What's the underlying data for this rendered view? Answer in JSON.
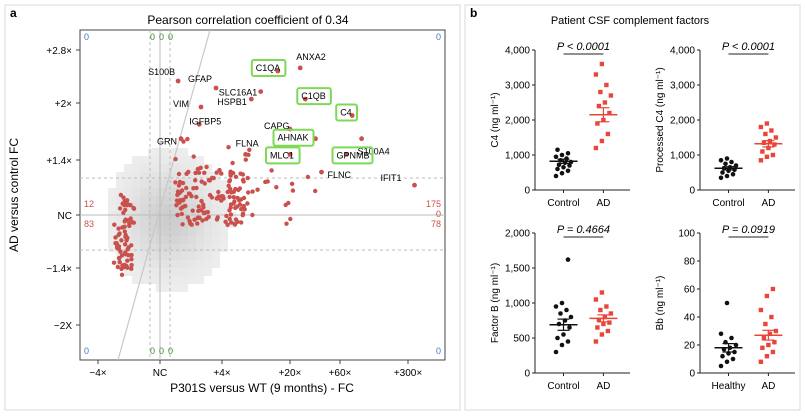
{
  "panel_a": {
    "label": "a",
    "title": "Pearson correlation coefficient of 0.34",
    "xlabel": "P301S versus WT (9 months) - FC",
    "ylabel": "AD versus control FC",
    "x_ticks": [
      "−4×",
      "NC",
      "+4×",
      "+20×",
      "+60×",
      "+300×"
    ],
    "y_ticks": [
      "+2.8×",
      "+2×",
      "+1.4×",
      "NC",
      "−1.4×",
      "−2X"
    ],
    "corner_counts": {
      "top_left": "0",
      "top_right": "0",
      "bottom_left": "0",
      "bottom_right": "0",
      "top_green": [
        "0",
        "0",
        "0"
      ],
      "bottom_green": [
        "0",
        "0",
        "0"
      ],
      "left_upper": "12",
      "left_lower": "83",
      "right_upper": "175",
      "right_lower": "78",
      "right_mid": "0"
    },
    "colors": {
      "points": "#c9504c",
      "highlight_box": "#7ed957",
      "count_blue": "#3a78c8",
      "count_green": "#3a8a2a",
      "count_red": "#c9504c"
    }
  },
  "panel_b": {
    "label": "b",
    "title": "Patient CSF complement factors",
    "colors": {
      "control": "#111111",
      "ad": "#e8463a"
    }
  },
  "chart_data": [
    {
      "type": "scatter",
      "title": "Pearson correlation coefficient of 0.34",
      "xlabel": "P301S versus WT (9 months) - FC",
      "ylabel": "AD versus control FC",
      "x_scale": "log fold change",
      "labeled_points": [
        {
          "label": "S100B",
          "x": 1.5,
          "y": 2.3
        },
        {
          "label": "GFAP",
          "x": 3.5,
          "y": 2.2
        },
        {
          "label": "VIM",
          "x": 2.5,
          "y": 1.95
        },
        {
          "label": "IGFBP5",
          "x": 2.4,
          "y": 1.75
        },
        {
          "label": "GRN",
          "x": 1.6,
          "y": 1.6
        },
        {
          "label": "HSPB1",
          "x": 8,
          "y": 2.05
        },
        {
          "label": "SLC16A1",
          "x": 10,
          "y": 2.15
        },
        {
          "label": "ANXA2",
          "x": 25,
          "y": 2.5
        },
        {
          "label": "C1QA",
          "x": 15,
          "y": 2.45
        },
        {
          "label": "C1QB",
          "x": 28,
          "y": 2.05
        },
        {
          "label": "C4",
          "x": 80,
          "y": 1.85
        },
        {
          "label": "CAPG",
          "x": 20,
          "y": 1.7
        },
        {
          "label": "AHNAK",
          "x": 35,
          "y": 1.6
        },
        {
          "label": "S100A4",
          "x": 100,
          "y": 1.6
        },
        {
          "label": "FLNA",
          "x": 7,
          "y": 1.45
        },
        {
          "label": "MLC1",
          "x": 20,
          "y": 1.45
        },
        {
          "label": "GPNMB",
          "x": 70,
          "y": 1.45
        },
        {
          "label": "FLNC",
          "x": 40,
          "y": 1.3
        },
        {
          "label": "IFIT1",
          "x": 350,
          "y": 1.2
        }
      ],
      "highlighted": [
        "C1QA",
        "C1QB",
        "C4",
        "AHNAK",
        "MLC1",
        "GPNMB"
      ]
    },
    {
      "type": "scatter",
      "subtype": "strip",
      "ylabel": "C4 (ng ml⁻¹)",
      "categories": [
        "Control",
        "AD"
      ],
      "ylim": [
        0,
        4000
      ],
      "yticks": [
        "0",
        "1,000",
        "2,000",
        "3,000",
        "4,000"
      ],
      "pvalue": "P < 0.0001",
      "series": [
        {
          "values": [
            400,
            480,
            550,
            600,
            650,
            700,
            720,
            780,
            800,
            850,
            900,
            950,
            1000,
            1050,
            1150
          ]
        },
        {
          "values": [
            1200,
            1400,
            1600,
            1900,
            2000,
            2200,
            2400,
            2500,
            2700,
            2800,
            3000,
            3300,
            3600
          ]
        }
      ],
      "mean": [
        820,
        2150
      ],
      "sem": [
        60,
        200
      ]
    },
    {
      "type": "scatter",
      "subtype": "strip",
      "ylabel": "Processed C4 (ng ml⁻¹)",
      "categories": [
        "Control",
        "AD"
      ],
      "ylim": [
        0,
        4000
      ],
      "yticks": [
        "0",
        "1,000",
        "2,000",
        "3,000",
        "4,000"
      ],
      "pvalue": "P < 0.0001",
      "series": [
        {
          "values": [
            350,
            400,
            450,
            500,
            550,
            580,
            620,
            650,
            700,
            750,
            800,
            850,
            900
          ]
        },
        {
          "values": [
            850,
            950,
            1000,
            1100,
            1200,
            1300,
            1350,
            1400,
            1500,
            1600,
            1700,
            1800,
            1900
          ]
        }
      ],
      "mean": [
        620,
        1320
      ],
      "sem": [
        45,
        90
      ]
    },
    {
      "type": "scatter",
      "subtype": "strip",
      "ylabel": "Factor B (ng ml⁻¹)",
      "categories": [
        "Control",
        "AD"
      ],
      "ylim": [
        0,
        2000
      ],
      "yticks": [
        "0",
        "500",
        "1,000",
        "1,500",
        "2,000"
      ],
      "pvalue": "P = 0.4664",
      "series": [
        {
          "values": [
            300,
            400,
            450,
            500,
            550,
            650,
            700,
            750,
            800,
            850,
            900,
            950,
            1000,
            1620
          ]
        },
        {
          "values": [
            450,
            550,
            600,
            650,
            700,
            720,
            760,
            800,
            850,
            900,
            950,
            1050,
            1150
          ]
        }
      ],
      "mean": [
        690,
        780
      ],
      "sem": [
        80,
        50
      ]
    },
    {
      "type": "scatter",
      "subtype": "strip",
      "ylabel": "Bb (ng ml⁻¹)",
      "categories": [
        "Healthy",
        "AD"
      ],
      "ylim": [
        0,
        100
      ],
      "yticks": [
        "0",
        "20",
        "40",
        "60",
        "80",
        "100"
      ],
      "pvalue": "P = 0.0919",
      "series": [
        {
          "values": [
            5,
            8,
            10,
            12,
            14,
            15,
            17,
            18,
            20,
            22,
            25,
            28,
            50
          ]
        },
        {
          "values": [
            8,
            12,
            15,
            18,
            20,
            22,
            25,
            28,
            30,
            35,
            40,
            45,
            55,
            60
          ]
        }
      ],
      "mean": [
        18,
        27
      ],
      "sem": [
        3,
        3.5
      ]
    }
  ]
}
